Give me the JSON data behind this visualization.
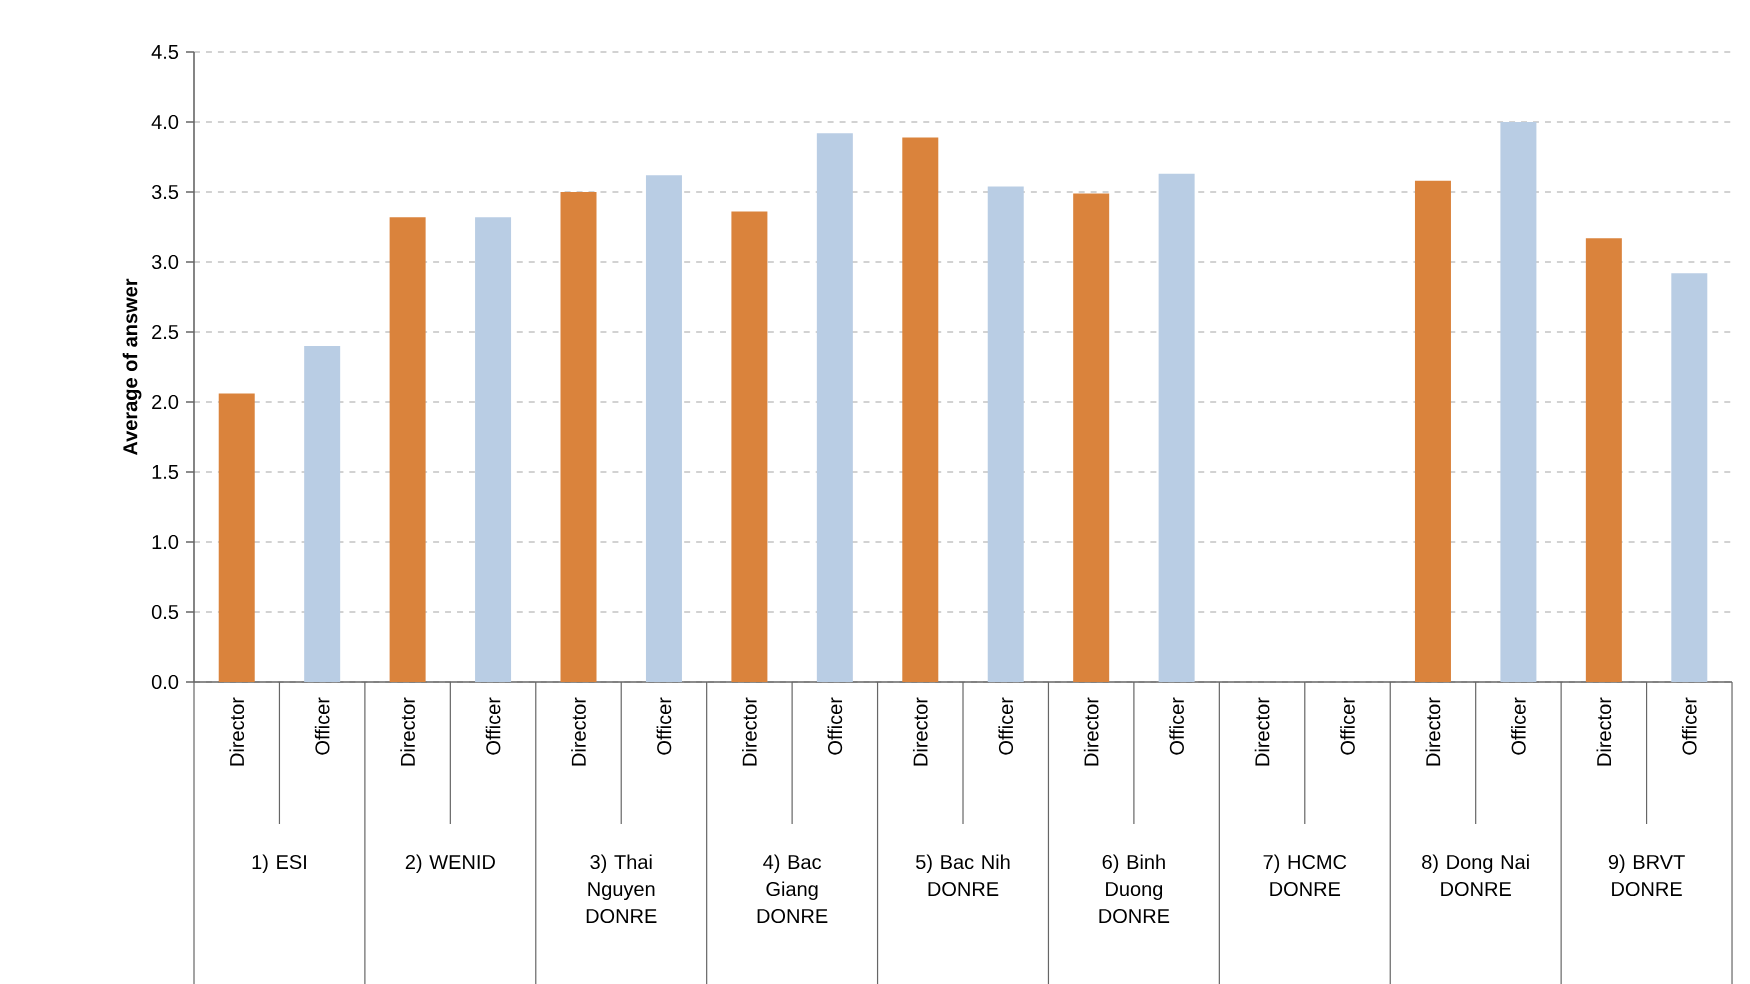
{
  "chart_data": {
    "type": "bar",
    "ylabel": "Average of answer",
    "categories": [
      "Director",
      "Officer",
      "Director",
      "Officer",
      "Director",
      "Officer",
      "Director",
      "Officer",
      "Director",
      "Officer",
      "Director",
      "Officer",
      "Director",
      "Officer",
      "Director",
      "Officer",
      "Director",
      "Officer"
    ],
    "values": [
      2.06,
      2.4,
      3.32,
      3.32,
      3.5,
      3.62,
      3.36,
      3.92,
      3.89,
      3.54,
      3.49,
      3.63,
      null,
      null,
      3.58,
      4.0,
      3.17,
      2.92
    ],
    "colors": [
      "#da833c",
      "#b9cde4",
      "#da833c",
      "#b9cde4",
      "#da833c",
      "#b9cde4",
      "#da833c",
      "#b9cde4",
      "#da833c",
      "#b9cde4",
      "#da833c",
      "#b9cde4",
      "#da833c",
      "#b9cde4",
      "#da833c",
      "#b9cde4",
      "#da833c",
      "#b9cde4"
    ],
    "annotations": [
      "1) ESI",
      "2) WENID",
      "3) Thai Nguyen DONRE",
      "4) Bac Giang DONRE",
      "5) Bac Nih DONRE",
      "6) Binh Duong DONRE",
      "7) HCMC DONRE",
      "8) Dong Nai DONRE",
      "9) BRVT DONRE"
    ],
    "ylim": [
      0,
      4.5
    ],
    "yticks": [
      {
        "value": 0,
        "label": "0.0"
      },
      {
        "value": 0.5,
        "label": "0.5"
      },
      {
        "value": 1,
        "label": "1.0"
      },
      {
        "value": 1.5,
        "label": "1.5"
      },
      {
        "value": 2,
        "label": "2.0"
      },
      {
        "value": 2.5,
        "label": "2.5"
      },
      {
        "value": 3,
        "label": "3.0"
      },
      {
        "value": 3.5,
        "label": "3.5"
      },
      {
        "value": 4,
        "label": "4.0"
      },
      {
        "value": 4.5,
        "label": "4.5"
      }
    ],
    "grid": "y"
  }
}
